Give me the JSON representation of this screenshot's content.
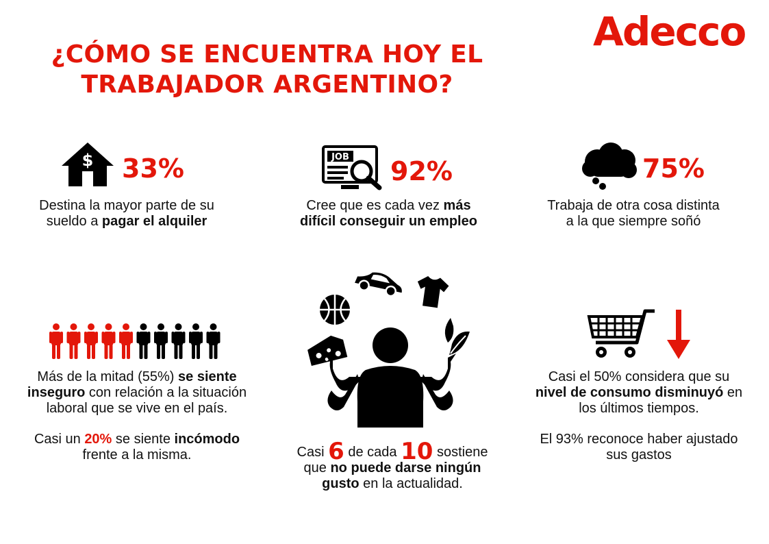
{
  "header": {
    "title_line1": "¿CÓMO SE ENCUENTRA HOY EL",
    "title_line2": "TRABAJADOR ARGENTINO?",
    "logo": "Adecco"
  },
  "colors": {
    "accent": "#e3170a",
    "dark": "#000000"
  },
  "stats": {
    "rent": {
      "icon": "house-dollar-icon",
      "value": "33%",
      "text_line1": "Destina la mayor parte de su",
      "text_pre": "sueldo a ",
      "text_bold": "pagar el alquiler"
    },
    "job": {
      "icon": "job-search-monitor-icon",
      "value": "92%",
      "text_pre": "Cree que es cada vez ",
      "text_bold1": "más",
      "text_bold2": "difícil conseguir un empleo"
    },
    "dream": {
      "icon": "thought-cloud-icon",
      "value": "75%",
      "text_line1": "Trabaja de otra cosa distinta",
      "text_line2": "a la que siempre soñó"
    }
  },
  "insecurity": {
    "icon": "people-row-icon",
    "people_total": 10,
    "people_highlighted": 5,
    "p1_pre": "Más de la mitad (55%) ",
    "p1_bold1": "se siente",
    "p1_bold2": "inseguro",
    "p1_mid": " con relación a la situación",
    "p1_line3": "laboral que se vive en el país.",
    "p2_pre": "Casi un ",
    "p2_red": "20%",
    "p2_mid": " se siente ",
    "p2_bold": "incómodo",
    "p2_line2": "frente a la misma."
  },
  "juggler": {
    "icon": "juggling-person-icon",
    "items": [
      "basketball-icon",
      "car-icon",
      "tshirt-icon",
      "leaf-icon",
      "cheese-icon"
    ],
    "pre": "Casi ",
    "num1": "6",
    "mid": " de cada ",
    "num2": "10",
    "post": " sostiene",
    "line2_pre": "que ",
    "line2_bold": "no puede darse ningún",
    "line3_bold": "gusto",
    "line3_post": " en la actualidad."
  },
  "consumption": {
    "icon": "shopping-cart-icon",
    "arrow_icon": "down-arrow-icon",
    "p1_line1": "Casi el 50% considera que su",
    "p1_bold": "nivel de consumo disminuyó",
    "p1_post": " en",
    "p1_line3": "los últimos tiempos.",
    "p2_line1": "El 93% reconoce haber ajustado",
    "p2_line2": "sus gastos"
  }
}
